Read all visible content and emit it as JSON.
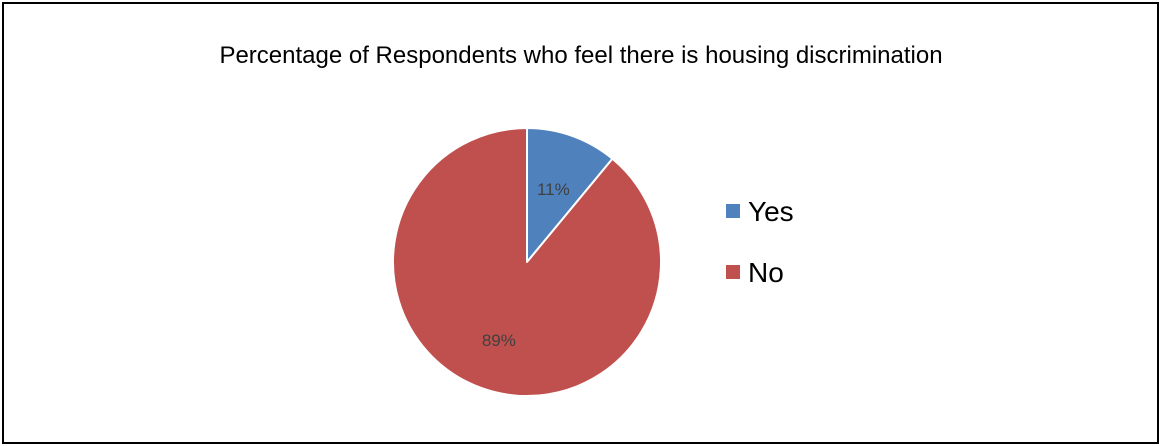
{
  "chart_data": {
    "type": "pie",
    "title": "Percentage of Respondents who feel there is housing discrimination",
    "categories": [
      "Yes",
      "No"
    ],
    "values": [
      11,
      89
    ],
    "data_labels": [
      "11%",
      "89%"
    ],
    "colors": [
      "#4F81BD",
      "#C0504D"
    ],
    "legend": {
      "placement": "right",
      "entries": [
        "Yes",
        "No"
      ]
    }
  }
}
